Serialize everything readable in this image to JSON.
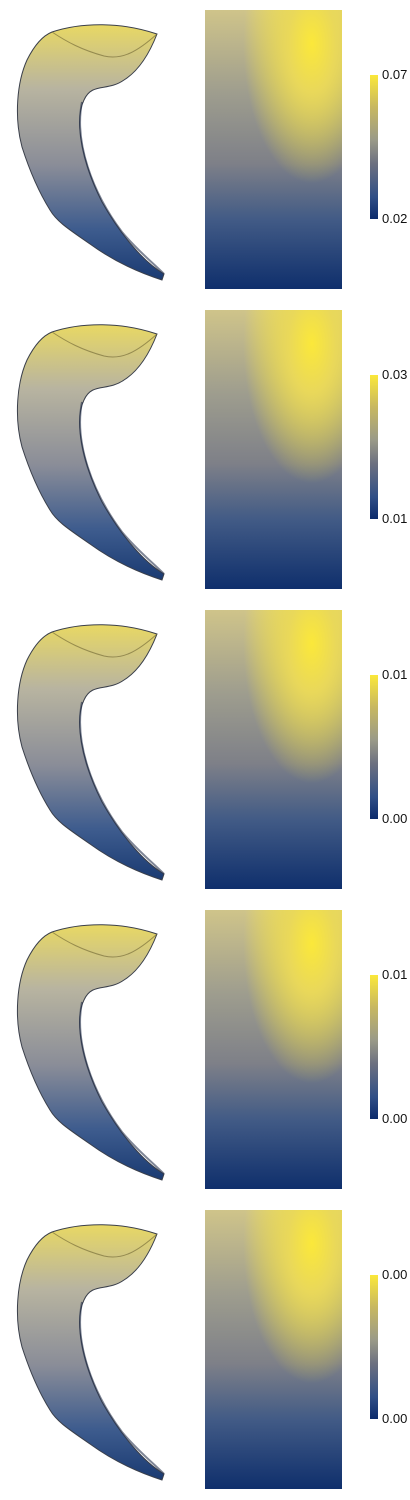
{
  "colormap": {
    "name": "cividis",
    "stops": [
      "#0b2a6b",
      "#2f4e86",
      "#6b6f80",
      "#9a9a88",
      "#c8b860",
      "#fbe83a"
    ]
  },
  "panels": [
    {
      "cbar_max": "0.07",
      "cbar_min": "0.02"
    },
    {
      "cbar_max": "0.03",
      "cbar_min": "0.01"
    },
    {
      "cbar_max": "0.01",
      "cbar_min": "0.00"
    },
    {
      "cbar_max": "0.01",
      "cbar_min": "0.00"
    },
    {
      "cbar_max": "0.00",
      "cbar_min": "0.00"
    }
  ]
}
